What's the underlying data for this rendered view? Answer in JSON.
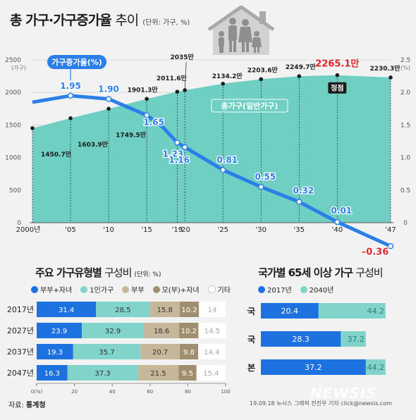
{
  "title": {
    "main": "총 가구·가구증가율",
    "light": "추이",
    "unit": "(단위: 가구, %)"
  },
  "colors": {
    "area": "#6fcfc3",
    "line": "#2b7fe8",
    "blue_bar": "#1e72e0",
    "teal_bar": "#80d4c9",
    "tan_bar": "#c6b79a",
    "mo_bar": "#a08f6e",
    "white_bar": "#ffffff"
  },
  "chart_data": [
    {
      "type": "area",
      "title": "총 가구·가구증가율 추이",
      "xticks": [
        "2000년",
        "'05",
        "'10",
        "'15",
        "'19",
        "'20",
        "'25",
        "'30",
        "'35",
        "'40",
        "'47"
      ],
      "left_axis": {
        "unit": "(가구)",
        "ticks": [
          "2500",
          "2000",
          "1500",
          "1000",
          "500",
          "0"
        ],
        "ylim": [
          0,
          2500
        ]
      },
      "right_axis": {
        "unit": "(%)",
        "ticks": [
          "2.5",
          "2.0",
          "1.5",
          "1.0",
          "0.5",
          "0"
        ],
        "ylim": [
          0,
          2.5
        ]
      },
      "series": [
        {
          "name": "총가구(일반가구)",
          "unit": "만 가구",
          "x": [
            2000,
            2005,
            2010,
            2015,
            2019,
            2020,
            2025,
            2030,
            2035,
            2040,
            2047
          ],
          "values": [
            1450.7,
            1603.9,
            1749.5,
            1901.3,
            2011.6,
            2035,
            2134.2,
            2203.6,
            2249.7,
            2265.1,
            2230.3
          ],
          "labels": [
            "1450.7만",
            "1603.9만",
            "1749.5만",
            "1901.3만",
            "2011.6만",
            "2035만",
            "2134.2만",
            "2203.6만",
            "2249.7만",
            "2265.1만",
            "2230.3만"
          ]
        },
        {
          "name": "가구증가율(%)",
          "unit": "%",
          "x": [
            2000,
            2005,
            2010,
            2015,
            2017,
            2019,
            2020,
            2025,
            2030,
            2035,
            2040,
            2047
          ],
          "values": [
            1.85,
            1.95,
            1.9,
            1.65,
            1.48,
            1.23,
            1.16,
            0.81,
            0.55,
            0.32,
            0.01,
            -0.36
          ],
          "labels": [
            "",
            "1.95",
            "1.90",
            "1.65",
            "",
            "1.23",
            "1.16",
            "0.81",
            "0.55",
            "0.32",
            "0.01",
            "–0.36"
          ]
        }
      ],
      "peak_label": "정점",
      "rate_label": "가구증가율(%)",
      "area_label": "총가구(일반가구)"
    },
    {
      "type": "bar",
      "stacked": true,
      "title": "주요 가구유형별 구성비",
      "unit": "(단위: %)",
      "categories": [
        "2017년",
        "2027년",
        "2037년",
        "2047년"
      ],
      "series": [
        {
          "name": "부부+자녀",
          "values": [
            31.4,
            23.9,
            19.3,
            16.3
          ]
        },
        {
          "name": "1인가구",
          "values": [
            28.5,
            32.9,
            35.7,
            37.3
          ]
        },
        {
          "name": "부부",
          "values": [
            15.8,
            18.6,
            20.7,
            21.5
          ]
        },
        {
          "name": "모(부)+자녀",
          "values": [
            10.2,
            10.2,
            9.8,
            9.5
          ]
        },
        {
          "name": "기타",
          "values": [
            14,
            14.5,
            14.4,
            15.4
          ]
        }
      ],
      "labels": [
        [
          "31.4",
          "28.5",
          "15.8",
          "10.2",
          "14"
        ],
        [
          "23.9",
          "32.9",
          "18.6",
          "10.2",
          "14.5"
        ],
        [
          "19.3",
          "35.7",
          "20.7",
          "9.8",
          "14.4"
        ],
        [
          "16.3",
          "37.3",
          "21.5",
          "9.5",
          "15.4"
        ]
      ],
      "xticks": [
        "0(%)",
        "20",
        "40",
        "60",
        "80",
        "100"
      ],
      "xlim": [
        0,
        100
      ]
    },
    {
      "type": "bar",
      "title": "국가별 65세 이상 가구 구성비",
      "categories": [
        "한국",
        "영국",
        "일본"
      ],
      "series": [
        {
          "name": "2017년",
          "values": [
            20.4,
            28.3,
            37.2
          ]
        },
        {
          "name": "2040년",
          "values": [
            44.2,
            37.2,
            44.2
          ]
        }
      ],
      "labels": [
        [
          "20.4",
          "28.3",
          "37.2"
        ],
        [
          "44.2",
          "37.2",
          "44.2"
        ]
      ]
    }
  ],
  "households": {
    "title_main": "주요 가구유형별",
    "title_light": "구성비",
    "unit": "(단위: %)"
  },
  "elderly": {
    "title_main": "국가별 65세 이상 가구",
    "title_light": "구성비"
  },
  "source": {
    "label": "자료:",
    "org": "통계청"
  },
  "credit": "19.09.18 뉴시스 그래픽 전진우 기자 click@newsis.com",
  "watermark": "NEWSIS"
}
